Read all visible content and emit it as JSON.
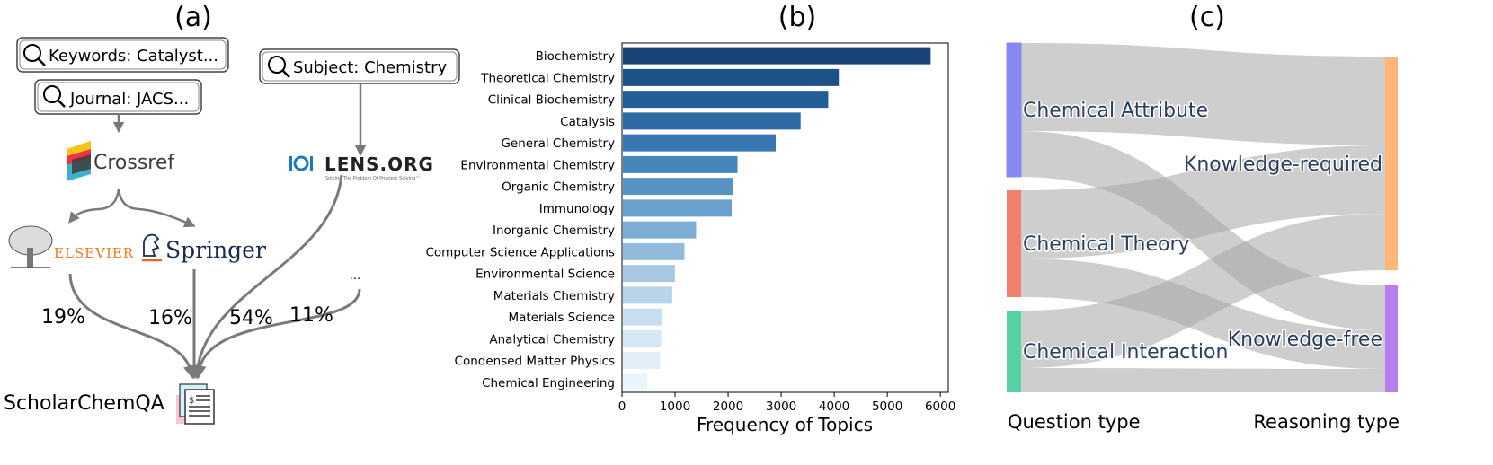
{
  "panel_a": {
    "label": "(a)",
    "boxes": {
      "keywords": "Keywords: Catalyst...",
      "journal": "Journal: JACS...",
      "subject": "Subject: Chemistry"
    },
    "logos": {
      "crossref": "Crossref",
      "lens": "LENS.ORG",
      "lens_tagline": "Solving The Problem Of Problem Solving™",
      "elsevier": "ELSEVIER",
      "springer": "Springer"
    },
    "ellipsis": "...",
    "percents": {
      "elsevier": "19%",
      "springer": "16%",
      "lens": "54%",
      "other": "11%"
    },
    "dataset": "ScholarChemQA"
  },
  "panel_b": {
    "label": "(b)"
  },
  "chart_data": {
    "type": "bar",
    "orientation": "horizontal",
    "categories": [
      "Biochemistry",
      "Theoretical Chemistry",
      "Clinical Biochemistry",
      "Catalysis",
      "General Chemistry",
      "Environmental Chemistry",
      "Organic Chemistry",
      "Immunology",
      "Inorganic Chemistry",
      "Computer Science Applications",
      "Environmental Science",
      "Materials Chemistry",
      "Materials Science",
      "Analytical Chemistry",
      "Condensed Matter Physics",
      "Chemical Engineering"
    ],
    "values": [
      5800,
      4070,
      3870,
      3350,
      2880,
      2160,
      2070,
      2050,
      1380,
      1160,
      980,
      930,
      730,
      720,
      700,
      460
    ],
    "colors": [
      "#1a4477",
      "#1d5289",
      "#235d98",
      "#2d6aa6",
      "#3877b2",
      "#4684bc",
      "#5792c5",
      "#69a0cd",
      "#7dadd5",
      "#92bbdb",
      "#a6c8e2",
      "#b8d4e9",
      "#c8deef",
      "#d6e7f4",
      "#e2eef8",
      "#ecf4fb"
    ],
    "xlabel": "Frequency of Topics",
    "xlim": [
      0,
      6150
    ],
    "xticks": [
      "0",
      "1000",
      "2000",
      "3000",
      "4000",
      "5000",
      "6000"
    ],
    "grid": false
  },
  "panel_c": {
    "label": "(c)",
    "left_nodes": [
      {
        "label": "Chemical Attribute",
        "color": "#8888f2"
      },
      {
        "label": "Chemical Theory",
        "color": "#f07f6e"
      },
      {
        "label": "Chemical Interaction",
        "color": "#55d1a4"
      }
    ],
    "right_nodes": [
      {
        "label": "Knowledge-required",
        "color": "#ffb678"
      },
      {
        "label": "Knowledge-free",
        "color": "#b57ff0"
      }
    ],
    "left_axis_label": "Question type",
    "right_axis_label": "Reasoning type"
  }
}
